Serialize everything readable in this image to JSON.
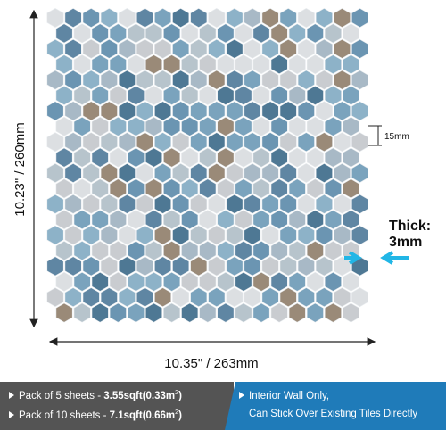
{
  "dimensions": {
    "height": "10.23\" / 260mm",
    "width": "10.35\" / 263mm",
    "tile": "15mm",
    "thick_label": "Thick:",
    "thick_value": "3mm"
  },
  "banner": {
    "pack1": {
      "text": "Pack of 5 sheets - ",
      "bold": "3.55sqft(0.33m",
      "sup": "2",
      "end": ")"
    },
    "pack2": {
      "text": "Pack of 10 sheets - ",
      "bold": "7.1sqft(0.66m",
      "sup": "2",
      "end": ")"
    },
    "note1": "Interior Wall Only,",
    "note2": "Can Stick Over Existing Tiles Directly"
  }
}
